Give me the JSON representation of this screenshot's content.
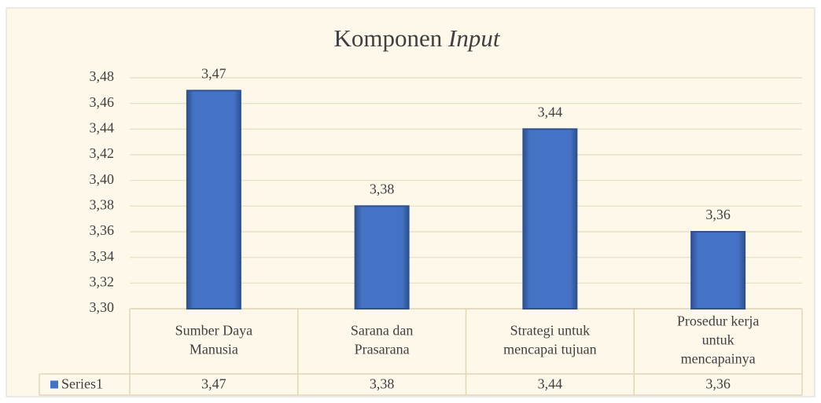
{
  "chart_data": {
    "type": "bar",
    "title": [
      "Komponen",
      "Input"
    ],
    "categories": [
      "Sumber Daya Manusia",
      "Sarana dan Prasarana",
      "Strategi untuk mencapai tujuan",
      "Prosedur kerja untuk mencapainya"
    ],
    "series": [
      {
        "name": "Series1",
        "color": "#4472c4",
        "values": [
          3.47,
          3.38,
          3.44,
          3.36
        ],
        "value_labels": [
          "3,47",
          "3,38",
          "3,44",
          "3,36"
        ]
      }
    ],
    "ylim": [
      3.3,
      3.48
    ],
    "yticks": [
      {
        "value": 3.3,
        "label": "3,30"
      },
      {
        "value": 3.32,
        "label": "3,32"
      },
      {
        "value": 3.34,
        "label": "3,34"
      },
      {
        "value": 3.36,
        "label": "3,36"
      },
      {
        "value": 3.38,
        "label": "3,38"
      },
      {
        "value": 3.4,
        "label": "3,40"
      },
      {
        "value": 3.42,
        "label": "3,42"
      },
      {
        "value": 3.44,
        "label": "3,44"
      },
      {
        "value": 3.46,
        "label": "3,46"
      },
      {
        "value": 3.48,
        "label": "3,48"
      }
    ],
    "grid": true,
    "data_table": true
  }
}
